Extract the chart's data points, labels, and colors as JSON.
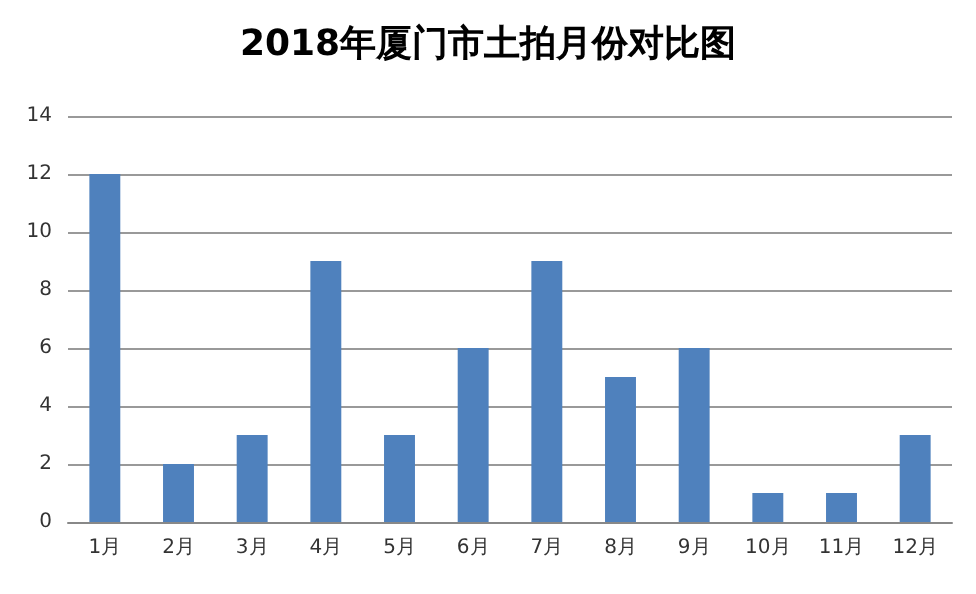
{
  "chart_data": {
    "type": "bar",
    "title": "2018年厦门市土拍月份对比图",
    "categories": [
      "1月",
      "2月",
      "3月",
      "4月",
      "5月",
      "6月",
      "7月",
      "8月",
      "9月",
      "10月",
      "11月",
      "12月"
    ],
    "values": [
      12,
      2,
      3,
      9,
      3,
      6,
      9,
      5,
      6,
      1,
      1,
      3
    ],
    "color": "#4f81bd",
    "ylim": [
      0,
      14
    ],
    "yticks": [
      0,
      2,
      4,
      6,
      8,
      10,
      12,
      14
    ],
    "grid": "y"
  }
}
